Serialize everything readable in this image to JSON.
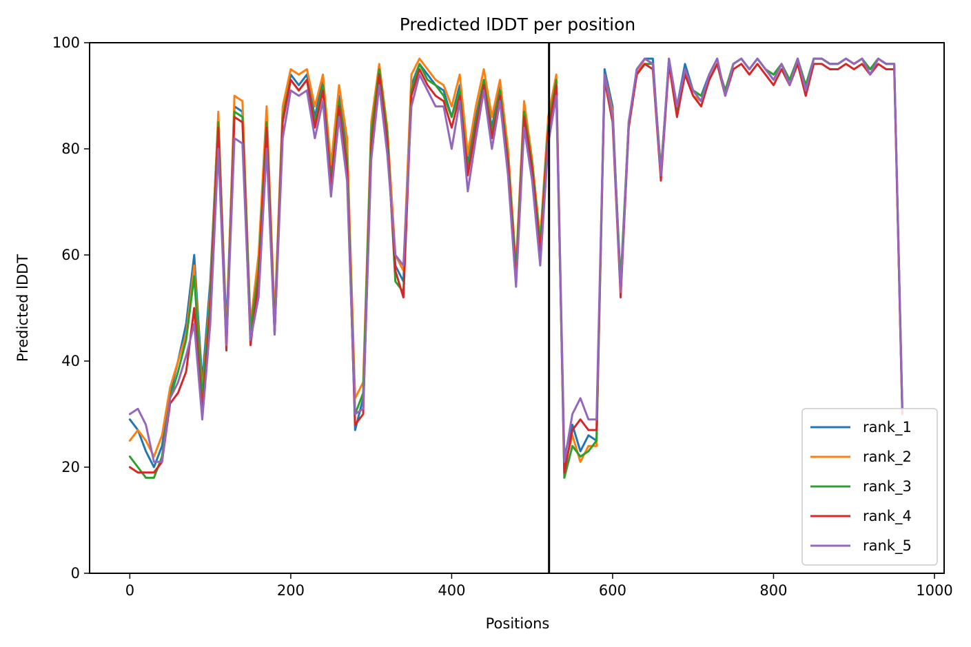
{
  "chart_data": {
    "type": "line",
    "title": "Predicted lDDT per position",
    "xlabel": "Positions",
    "ylabel": "Predicted lDDT",
    "xlim": [
      -50,
      1012
    ],
    "ylim": [
      0,
      100
    ],
    "x_ticks": [
      0,
      200,
      400,
      600,
      800,
      1000
    ],
    "y_ticks": [
      0,
      20,
      40,
      60,
      80,
      100
    ],
    "x_tick_labels": [
      "0",
      "200",
      "400",
      "600",
      "800",
      "1000"
    ],
    "y_tick_labels": [
      "0",
      "20",
      "40",
      "60",
      "80",
      "100"
    ],
    "grid": false,
    "legend_position": "lower right",
    "chain_break": 521,
    "x_start": 0,
    "x_step": 10,
    "series": [
      {
        "name": "rank_1",
        "color": "#1f77b4",
        "values": [
          29,
          27,
          23,
          20,
          24,
          34,
          40,
          47,
          60,
          36,
          55,
          86,
          46,
          88,
          87,
          45,
          58,
          86,
          45,
          86,
          94,
          92,
          94,
          86,
          93,
          75,
          90,
          79,
          27,
          33,
          82,
          94,
          82,
          58,
          55,
          92,
          96,
          94,
          92,
          91,
          86,
          92,
          77,
          86,
          93,
          84,
          92,
          79,
          56,
          88,
          76,
          61,
          84,
          93,
          22,
          28,
          23,
          26,
          25,
          95,
          88,
          53,
          84,
          95,
          97,
          97,
          75,
          97,
          88,
          96,
          91,
          90,
          94,
          97,
          90,
          96,
          97,
          95,
          97,
          95,
          93,
          96,
          92,
          97,
          90,
          97,
          97,
          96,
          96,
          97,
          96,
          97,
          94,
          97,
          96,
          96,
          30
        ]
      },
      {
        "name": "rank_2",
        "color": "#ff7f0e",
        "values": [
          25,
          27,
          25,
          22,
          26,
          35,
          40,
          45,
          58,
          34,
          53,
          87,
          44,
          90,
          89,
          47,
          60,
          88,
          48,
          88,
          95,
          94,
          95,
          88,
          94,
          77,
          92,
          82,
          33,
          36,
          85,
          96,
          84,
          60,
          57,
          94,
          97,
          95,
          93,
          92,
          88,
          94,
          79,
          88,
          95,
          86,
          93,
          80,
          58,
          89,
          78,
          63,
          86,
          94,
          20,
          26,
          21,
          24,
          24,
          94,
          87,
          54,
          85,
          94,
          97,
          96,
          76,
          96,
          87,
          95,
          90,
          89,
          93,
          96,
          91,
          96,
          97,
          95,
          97,
          95,
          94,
          96,
          93,
          97,
          91,
          97,
          97,
          96,
          96,
          97,
          96,
          97,
          95,
          97,
          96,
          96,
          32
        ]
      },
      {
        "name": "rank_3",
        "color": "#2ca02c",
        "values": [
          22,
          20,
          18,
          18,
          22,
          33,
          38,
          44,
          56,
          33,
          52,
          85,
          43,
          87,
          86,
          46,
          57,
          85,
          46,
          86,
          93,
          91,
          93,
          85,
          92,
          74,
          89,
          78,
          30,
          34,
          83,
          95,
          83,
          55,
          53,
          91,
          96,
          93,
          92,
          90,
          86,
          91,
          76,
          85,
          93,
          83,
          91,
          78,
          57,
          87,
          77,
          62,
          84,
          93,
          18,
          24,
          22,
          23,
          25,
          93,
          86,
          55,
          85,
          94,
          96,
          96,
          76,
          96,
          87,
          95,
          91,
          90,
          93,
          96,
          91,
          96,
          97,
          95,
          97,
          95,
          94,
          96,
          93,
          97,
          92,
          97,
          97,
          96,
          96,
          97,
          96,
          97,
          95,
          97,
          96,
          96,
          31
        ]
      },
      {
        "name": "rank_4",
        "color": "#d62728",
        "values": [
          20,
          19,
          19,
          19,
          21,
          32,
          34,
          38,
          50,
          30,
          50,
          84,
          42,
          86,
          85,
          43,
          55,
          84,
          45,
          85,
          93,
          91,
          93,
          84,
          91,
          73,
          88,
          76,
          28,
          30,
          80,
          94,
          81,
          57,
          52,
          90,
          95,
          92,
          90,
          89,
          84,
          90,
          75,
          84,
          92,
          82,
          90,
          77,
          55,
          86,
          76,
          60,
          83,
          92,
          19,
          27,
          29,
          27,
          27,
          93,
          85,
          52,
          84,
          94,
          96,
          95,
          74,
          96,
          86,
          94,
          90,
          88,
          93,
          96,
          90,
          95,
          96,
          94,
          96,
          94,
          92,
          95,
          92,
          96,
          90,
          96,
          96,
          95,
          95,
          96,
          95,
          96,
          94,
          96,
          95,
          95,
          30
        ]
      },
      {
        "name": "rank_5",
        "color": "#9467bd",
        "values": [
          30,
          31,
          28,
          21,
          21,
          33,
          36,
          41,
          47,
          29,
          47,
          80,
          43,
          82,
          81,
          44,
          52,
          80,
          45,
          82,
          91,
          90,
          91,
          82,
          89,
          71,
          86,
          74,
          30,
          31,
          78,
          92,
          79,
          60,
          58,
          88,
          94,
          91,
          88,
          88,
          80,
          89,
          72,
          82,
          91,
          80,
          89,
          75,
          54,
          84,
          74,
          58,
          81,
          90,
          21,
          30,
          33,
          29,
          29,
          94,
          86,
          53,
          85,
          95,
          97,
          96,
          75,
          97,
          88,
          95,
          91,
          89,
          94,
          97,
          90,
          96,
          97,
          95,
          97,
          95,
          93,
          96,
          92,
          97,
          91,
          97,
          97,
          96,
          96,
          97,
          96,
          97,
          94,
          97,
          96,
          96,
          31
        ]
      }
    ]
  }
}
